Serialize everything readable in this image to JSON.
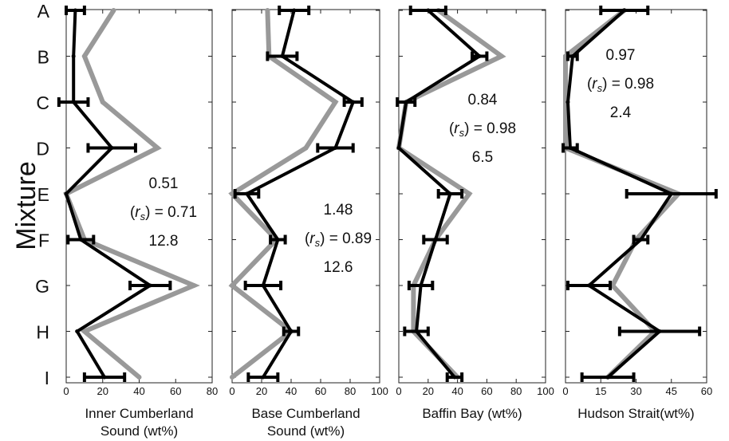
{
  "chart_data": {
    "type": "line",
    "ylabel": "Mixture",
    "categories": [
      "A",
      "B",
      "C",
      "D",
      "E",
      "F",
      "G",
      "H",
      "I"
    ],
    "panels": [
      {
        "xlabel_lines": [
          "Inner Cumberland",
          "Sound (wt%)"
        ],
        "xlim": [
          0,
          80
        ],
        "xticks": [
          "0",
          "20",
          "40",
          "60",
          "80"
        ],
        "series": [
          {
            "values": [
              5,
              4,
              4,
              25,
              0,
              8,
              46,
              6,
              21
            ],
            "err": [
              5,
              0,
              8,
              13,
              0,
              7,
              11,
              0,
              11
            ]
          },
          {
            "values": [
              26,
              10,
              20,
              50,
              0,
              10,
              70,
              10,
              40
            ],
            "err": null
          }
        ],
        "stats": [
          "0.51",
          "(r_s) = 0.71",
          "12.8"
        ]
      },
      {
        "xlabel_lines": [
          "Base Cumberland",
          "Sound (wt%)"
        ],
        "xlim": [
          0,
          100
        ],
        "xticks": [
          "0",
          "20",
          "40",
          "60",
          "80",
          "100"
        ],
        "series": [
          {
            "values": [
              42,
              34,
              82,
              70,
              10,
              31,
              21,
              40,
              21
            ],
            "err": [
              10,
              10,
              6,
              12,
              8,
              5,
              12,
              5,
              10
            ]
          },
          {
            "values": [
              24,
              25,
              70,
              50,
              0,
              30,
              0,
              40,
              0
            ],
            "err": null
          }
        ],
        "stats": [
          "1.48",
          "(r_s) = 0.89",
          "12.6"
        ]
      },
      {
        "xlabel_lines": [
          "Baffin Bay (wt%)"
        ],
        "xlim": [
          0,
          100
        ],
        "xticks": [
          "0",
          "20",
          "40",
          "60",
          "80",
          "100"
        ],
        "series": [
          {
            "values": [
              20,
              55,
              5,
              0,
              35,
              25,
              15,
              12,
              38
            ],
            "err": [
              12,
              5,
              6,
              0,
              8,
              8,
              8,
              8,
              5
            ]
          },
          {
            "values": [
              27,
              70,
              5,
              0,
              48,
              25,
              10,
              10,
              40
            ],
            "err": null
          }
        ],
        "stats": [
          "0.84",
          "(r_s) = 0.98",
          "6.5"
        ]
      },
      {
        "xlabel_lines": [
          "Hudson Strait(wt%)"
        ],
        "xlim": [
          0,
          60
        ],
        "xticks": [
          "0",
          "15",
          "30",
          "45",
          "60"
        ],
        "series": [
          {
            "values": [
              25,
              3,
              1,
              2,
              45,
              32,
              10,
              40,
              18
            ],
            "err": [
              10,
              2,
              0,
              3,
              19,
              3,
              9,
              17,
              11
            ]
          },
          {
            "values": [
              25,
              0,
              0,
              0,
              48,
              30,
              20,
              38,
              18
            ],
            "err": null
          }
        ],
        "stats": [
          "0.97",
          "(r_s) = 0.98",
          "2.4"
        ]
      }
    ],
    "colors": {
      "measured": "#000000",
      "modeled": "#999999"
    }
  }
}
